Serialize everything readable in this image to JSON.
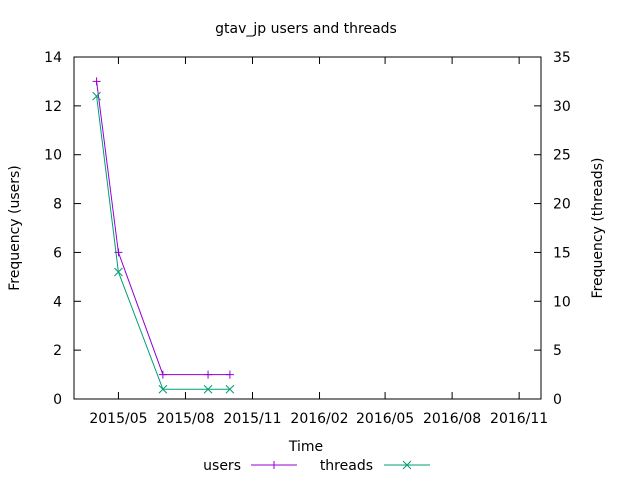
{
  "chart_data": {
    "type": "line",
    "title": "gtav_jp users and threads",
    "xlabel": "Time",
    "ylabel_left": "Frequency (users)",
    "ylabel_right": "Frequency (threads)",
    "x_ticks": [
      "2015/05",
      "2015/08",
      "2015/11",
      "2016/02",
      "2016/05",
      "2016/08",
      "2016/11"
    ],
    "x_tick_dates": [
      "2015-05-01",
      "2015-08-01",
      "2015-11-01",
      "2016-02-01",
      "2016-05-01",
      "2016-08-01",
      "2016-11-01"
    ],
    "xlim": [
      "2015-03-01",
      "2016-12-01"
    ],
    "y_left_ticks": [
      "0",
      "2",
      "4",
      "6",
      "8",
      "10",
      "12",
      "14"
    ],
    "y_left_range": [
      0,
      14
    ],
    "y_right_ticks": [
      "0",
      "5",
      "10",
      "15",
      "20",
      "25",
      "30",
      "35"
    ],
    "y_right_range": [
      0,
      35
    ],
    "legend_position": "bottom-center",
    "grid": false,
    "series": [
      {
        "name": "users",
        "axis": "left",
        "color": "#9400d3",
        "marker": "plus",
        "x": [
          "2015-04-01",
          "2015-05-01",
          "2015-07-01",
          "2015-09-01",
          "2015-10-01"
        ],
        "y": [
          13,
          6,
          1,
          1,
          1
        ]
      },
      {
        "name": "threads",
        "axis": "right",
        "color": "#009e73",
        "marker": "cross",
        "x": [
          "2015-04-01",
          "2015-05-01",
          "2015-07-01",
          "2015-09-01",
          "2015-10-01"
        ],
        "y": [
          31,
          13,
          1,
          1,
          1
        ]
      }
    ]
  }
}
